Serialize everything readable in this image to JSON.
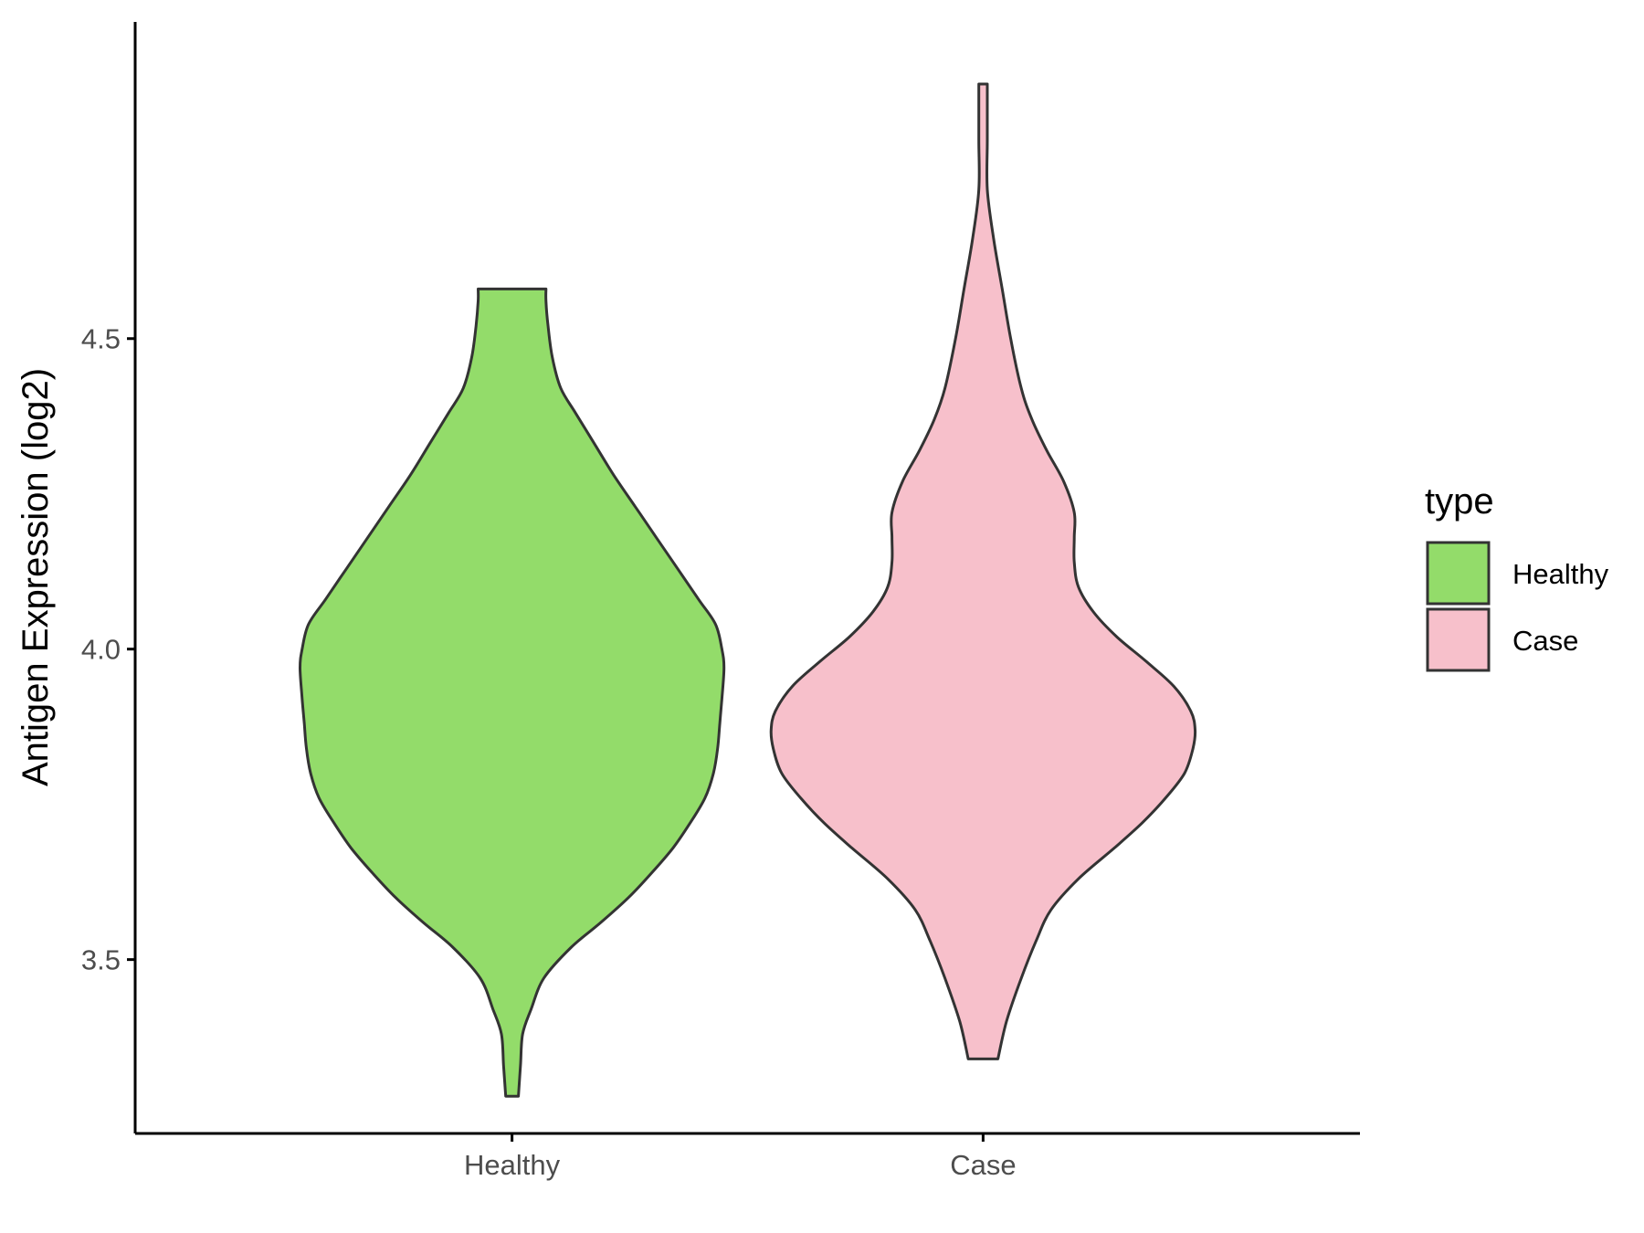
{
  "chart_data": {
    "type": "violin",
    "title": "",
    "xlabel": "",
    "ylabel": "Antigen Expression (log2)",
    "categories": [
      "Healthy",
      "Case"
    ],
    "yticks": [
      3.5,
      4.0,
      4.5
    ],
    "ylim": [
      3.22,
      5.01
    ],
    "grid": false,
    "legend": {
      "title": "type",
      "position": "right",
      "entries": [
        "Healthy",
        "Case"
      ]
    },
    "colors": {
      "Healthy": "#93DC6A",
      "Case": "#F7C0CB",
      "outline": "#333333"
    },
    "series": [
      {
        "name": "Healthy",
        "min": 3.28,
        "max": 4.58,
        "density": [
          [
            3.28,
            0.03
          ],
          [
            3.33,
            0.04
          ],
          [
            3.38,
            0.05
          ],
          [
            3.42,
            0.09
          ],
          [
            3.47,
            0.15
          ],
          [
            3.52,
            0.28
          ],
          [
            3.56,
            0.42
          ],
          [
            3.6,
            0.55
          ],
          [
            3.64,
            0.66
          ],
          [
            3.68,
            0.76
          ],
          [
            3.72,
            0.84
          ],
          [
            3.76,
            0.91
          ],
          [
            3.8,
            0.95
          ],
          [
            3.84,
            0.97
          ],
          [
            3.88,
            0.98
          ],
          [
            3.92,
            0.99
          ],
          [
            3.97,
            1.0
          ],
          [
            4.0,
            0.99
          ],
          [
            4.04,
            0.96
          ],
          [
            4.08,
            0.88
          ],
          [
            4.13,
            0.78
          ],
          [
            4.18,
            0.68
          ],
          [
            4.23,
            0.58
          ],
          [
            4.28,
            0.48
          ],
          [
            4.33,
            0.39
          ],
          [
            4.38,
            0.3
          ],
          [
            4.42,
            0.23
          ],
          [
            4.47,
            0.19
          ],
          [
            4.52,
            0.17
          ],
          [
            4.56,
            0.16
          ],
          [
            4.58,
            0.16
          ]
        ]
      },
      {
        "name": "Case",
        "min": 3.34,
        "max": 4.91,
        "density": [
          [
            3.34,
            0.07
          ],
          [
            3.4,
            0.11
          ],
          [
            3.47,
            0.18
          ],
          [
            3.53,
            0.25
          ],
          [
            3.58,
            0.32
          ],
          [
            3.63,
            0.45
          ],
          [
            3.68,
            0.62
          ],
          [
            3.72,
            0.75
          ],
          [
            3.76,
            0.86
          ],
          [
            3.8,
            0.95
          ],
          [
            3.84,
            0.99
          ],
          [
            3.87,
            1.0
          ],
          [
            3.9,
            0.98
          ],
          [
            3.94,
            0.9
          ],
          [
            3.98,
            0.77
          ],
          [
            4.02,
            0.63
          ],
          [
            4.06,
            0.52
          ],
          [
            4.1,
            0.45
          ],
          [
            4.14,
            0.43
          ],
          [
            4.18,
            0.43
          ],
          [
            4.22,
            0.43
          ],
          [
            4.27,
            0.38
          ],
          [
            4.32,
            0.3
          ],
          [
            4.37,
            0.23
          ],
          [
            4.42,
            0.18
          ],
          [
            4.5,
            0.13
          ],
          [
            4.58,
            0.09
          ],
          [
            4.66,
            0.05
          ],
          [
            4.74,
            0.02
          ],
          [
            4.82,
            0.02
          ],
          [
            4.91,
            0.02
          ]
        ]
      }
    ]
  }
}
